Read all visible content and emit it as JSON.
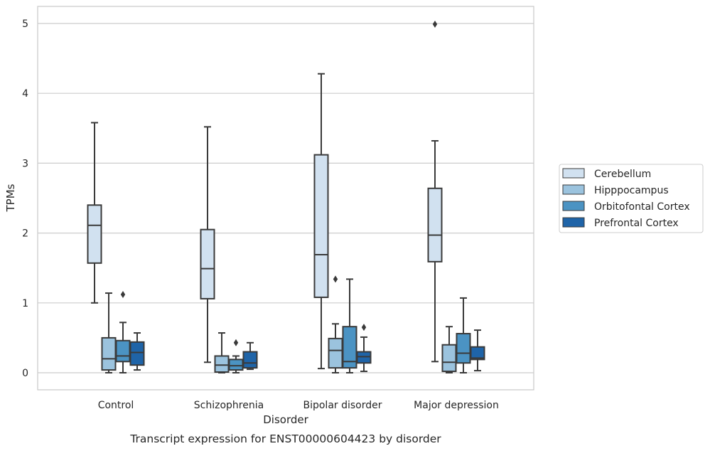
{
  "chart_data": {
    "type": "box",
    "title": "",
    "caption": "Transcript expression for ENST00000604423 by disorder",
    "xlabel": "Disorder",
    "ylabel": "TPMs",
    "ylim": [
      -0.24,
      5.25
    ],
    "yticks": [
      0,
      1,
      2,
      3,
      4,
      5
    ],
    "categories": [
      "Control",
      "Schizophrenia",
      "Bipolar disorder",
      "Major depression"
    ],
    "grid": "horizontal",
    "legend_position": "right",
    "series": [
      {
        "name": "Cerebellum",
        "color": "#d1e1f0",
        "boxes": [
          {
            "whislo": 1.0,
            "q1": 1.57,
            "med": 2.11,
            "q3": 2.4,
            "whishi": 3.58,
            "fliers": []
          },
          {
            "whislo": 0.15,
            "q1": 1.06,
            "med": 1.49,
            "q3": 2.05,
            "whishi": 3.52,
            "fliers": []
          },
          {
            "whislo": 0.06,
            "q1": 1.08,
            "med": 1.69,
            "q3": 3.12,
            "whishi": 4.28,
            "fliers": []
          },
          {
            "whislo": 0.16,
            "q1": 1.59,
            "med": 1.97,
            "q3": 2.64,
            "whishi": 3.32,
            "fliers": [
              4.99
            ]
          }
        ]
      },
      {
        "name": "Hipppocampus",
        "color": "#9bc3de",
        "boxes": [
          {
            "whislo": 0.0,
            "q1": 0.04,
            "med": 0.2,
            "q3": 0.5,
            "whishi": 1.14,
            "fliers": []
          },
          {
            "whislo": 0.0,
            "q1": 0.01,
            "med": 0.11,
            "q3": 0.24,
            "whishi": 0.57,
            "fliers": []
          },
          {
            "whislo": 0.0,
            "q1": 0.07,
            "med": 0.32,
            "q3": 0.49,
            "whishi": 0.7,
            "fliers": [
              1.34
            ]
          },
          {
            "whislo": 0.0,
            "q1": 0.02,
            "med": 0.15,
            "q3": 0.4,
            "whishi": 0.66,
            "fliers": []
          }
        ]
      },
      {
        "name": "Orbitofontal Cortex",
        "color": "#4b93c3",
        "boxes": [
          {
            "whislo": 0.0,
            "q1": 0.16,
            "med": 0.24,
            "q3": 0.46,
            "whishi": 0.72,
            "fliers": [
              1.12
            ]
          },
          {
            "whislo": 0.0,
            "q1": 0.04,
            "med": 0.1,
            "q3": 0.19,
            "whishi": 0.24,
            "fliers": [
              0.43
            ]
          },
          {
            "whislo": 0.0,
            "q1": 0.07,
            "med": 0.16,
            "q3": 0.66,
            "whishi": 1.34,
            "fliers": []
          },
          {
            "whislo": 0.0,
            "q1": 0.14,
            "med": 0.28,
            "q3": 0.56,
            "whishi": 1.07,
            "fliers": []
          }
        ]
      },
      {
        "name": "Prefrontal Cortex",
        "color": "#1f64a8",
        "boxes": [
          {
            "whislo": 0.04,
            "q1": 0.11,
            "med": 0.29,
            "q3": 0.44,
            "whishi": 0.57,
            "fliers": []
          },
          {
            "whislo": 0.05,
            "q1": 0.07,
            "med": 0.14,
            "q3": 0.3,
            "whishi": 0.43,
            "fliers": []
          },
          {
            "whislo": 0.02,
            "q1": 0.14,
            "med": 0.23,
            "q3": 0.3,
            "whishi": 0.51,
            "fliers": [
              0.65
            ]
          },
          {
            "whislo": 0.03,
            "q1": 0.19,
            "med": 0.21,
            "q3": 0.37,
            "whishi": 0.61,
            "fliers": []
          }
        ]
      }
    ]
  }
}
